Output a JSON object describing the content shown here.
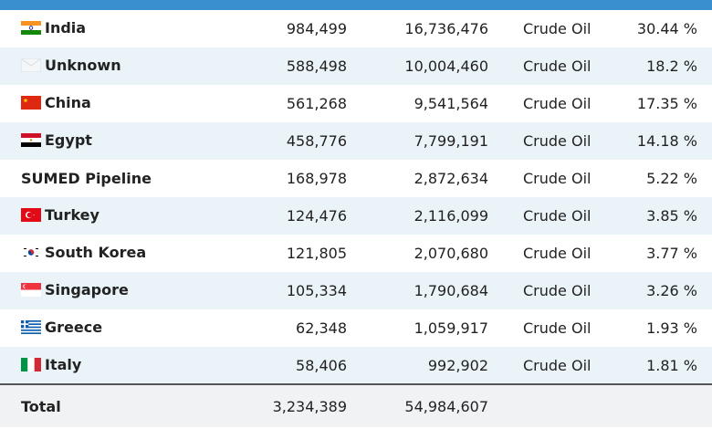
{
  "table": {
    "rows": [
      {
        "name": "India",
        "flag": "india-flag-icon",
        "a": "984,499",
        "b": "16,736,476",
        "product": "Crude Oil",
        "pct": "30.44 %"
      },
      {
        "name": "Unknown",
        "flag": "unknown-flag-icon",
        "a": "588,498",
        "b": "10,004,460",
        "product": "Crude Oil",
        "pct": "18.2 %"
      },
      {
        "name": "China",
        "flag": "china-flag-icon",
        "a": "561,268",
        "b": "9,541,564",
        "product": "Crude Oil",
        "pct": "17.35 %"
      },
      {
        "name": "Egypt",
        "flag": "egypt-flag-icon",
        "a": "458,776",
        "b": "7,799,191",
        "product": "Crude Oil",
        "pct": "14.18 %"
      },
      {
        "name": "SUMED Pipeline",
        "flag": "",
        "a": "168,978",
        "b": "2,872,634",
        "product": "Crude Oil",
        "pct": "5.22 %"
      },
      {
        "name": "Turkey",
        "flag": "turkey-flag-icon",
        "a": "124,476",
        "b": "2,116,099",
        "product": "Crude Oil",
        "pct": "3.85 %"
      },
      {
        "name": "South Korea",
        "flag": "south-korea-flag-icon",
        "a": "121,805",
        "b": "2,070,680",
        "product": "Crude Oil",
        "pct": "3.77 %"
      },
      {
        "name": "Singapore",
        "flag": "singapore-flag-icon",
        "a": "105,334",
        "b": "1,790,684",
        "product": "Crude Oil",
        "pct": "3.26 %"
      },
      {
        "name": "Greece",
        "flag": "greece-flag-icon",
        "a": "62,348",
        "b": "1,059,917",
        "product": "Crude Oil",
        "pct": "1.93 %"
      },
      {
        "name": "Italy",
        "flag": "italy-flag-icon",
        "a": "58,406",
        "b": "992,902",
        "product": "Crude Oil",
        "pct": "1.81 %"
      }
    ],
    "total": {
      "label": "Total",
      "a": "3,234,389",
      "b": "54,984,607"
    }
  },
  "colors": {
    "header": "#3a8fcf",
    "alt_row": "#eaf4f8",
    "total_bg": "#f1f2f4"
  }
}
